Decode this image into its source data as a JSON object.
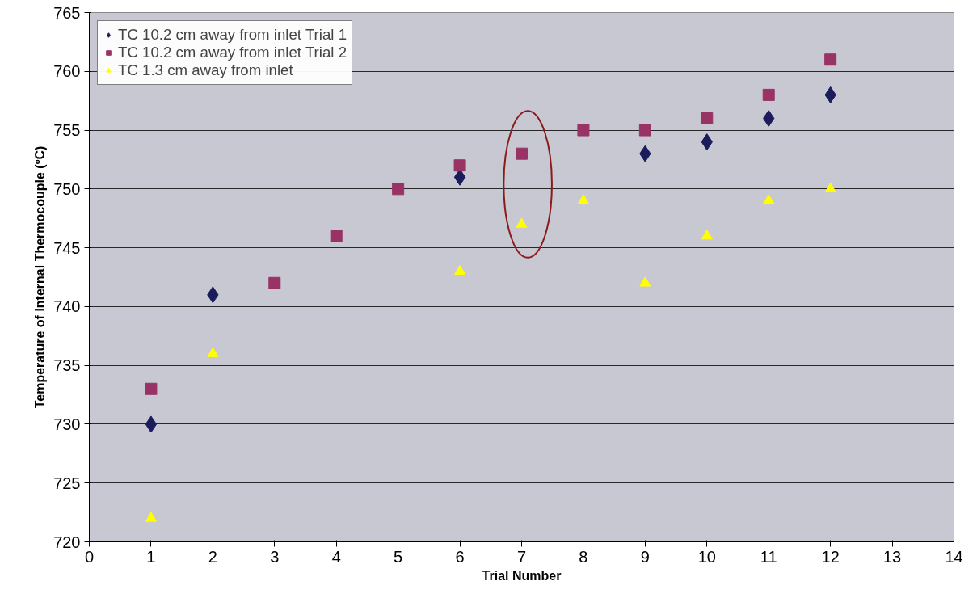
{
  "chart_data": {
    "type": "scatter",
    "xlabel": "Trial Number",
    "ylabel": "Temperature of Internal Thermocouple (ºC)",
    "x": [
      1,
      2,
      3,
      4,
      5,
      6,
      7,
      8,
      9,
      10,
      11,
      12
    ],
    "series": [
      {
        "name": "TC 10.2 cm away from inlet Trial 1",
        "color": "#1c1c5c",
        "marker": "diamond",
        "values": [
          730,
          741,
          null,
          null,
          null,
          751,
          null,
          null,
          753,
          754,
          756,
          758
        ]
      },
      {
        "name": "TC 10.2 cm away from inlet Trial 2",
        "color": "#993366",
        "marker": "square",
        "values": [
          733,
          null,
          742,
          746,
          750,
          752,
          753,
          755,
          755,
          756,
          758,
          761
        ]
      },
      {
        "name": "TC 1.3 cm away from inlet",
        "color": "#ffff00",
        "marker": "triangle",
        "values": [
          722,
          736,
          null,
          null,
          null,
          743,
          747,
          749,
          742,
          746,
          749,
          750
        ]
      }
    ],
    "xlim": [
      0,
      14
    ],
    "xticks": [
      0,
      1,
      2,
      3,
      4,
      5,
      6,
      7,
      8,
      9,
      10,
      11,
      12,
      13,
      14
    ],
    "ylim": [
      720,
      765
    ],
    "yticks": [
      720,
      725,
      730,
      735,
      740,
      745,
      750,
      755,
      760,
      765
    ],
    "grid": "y",
    "legend": "top left"
  }
}
